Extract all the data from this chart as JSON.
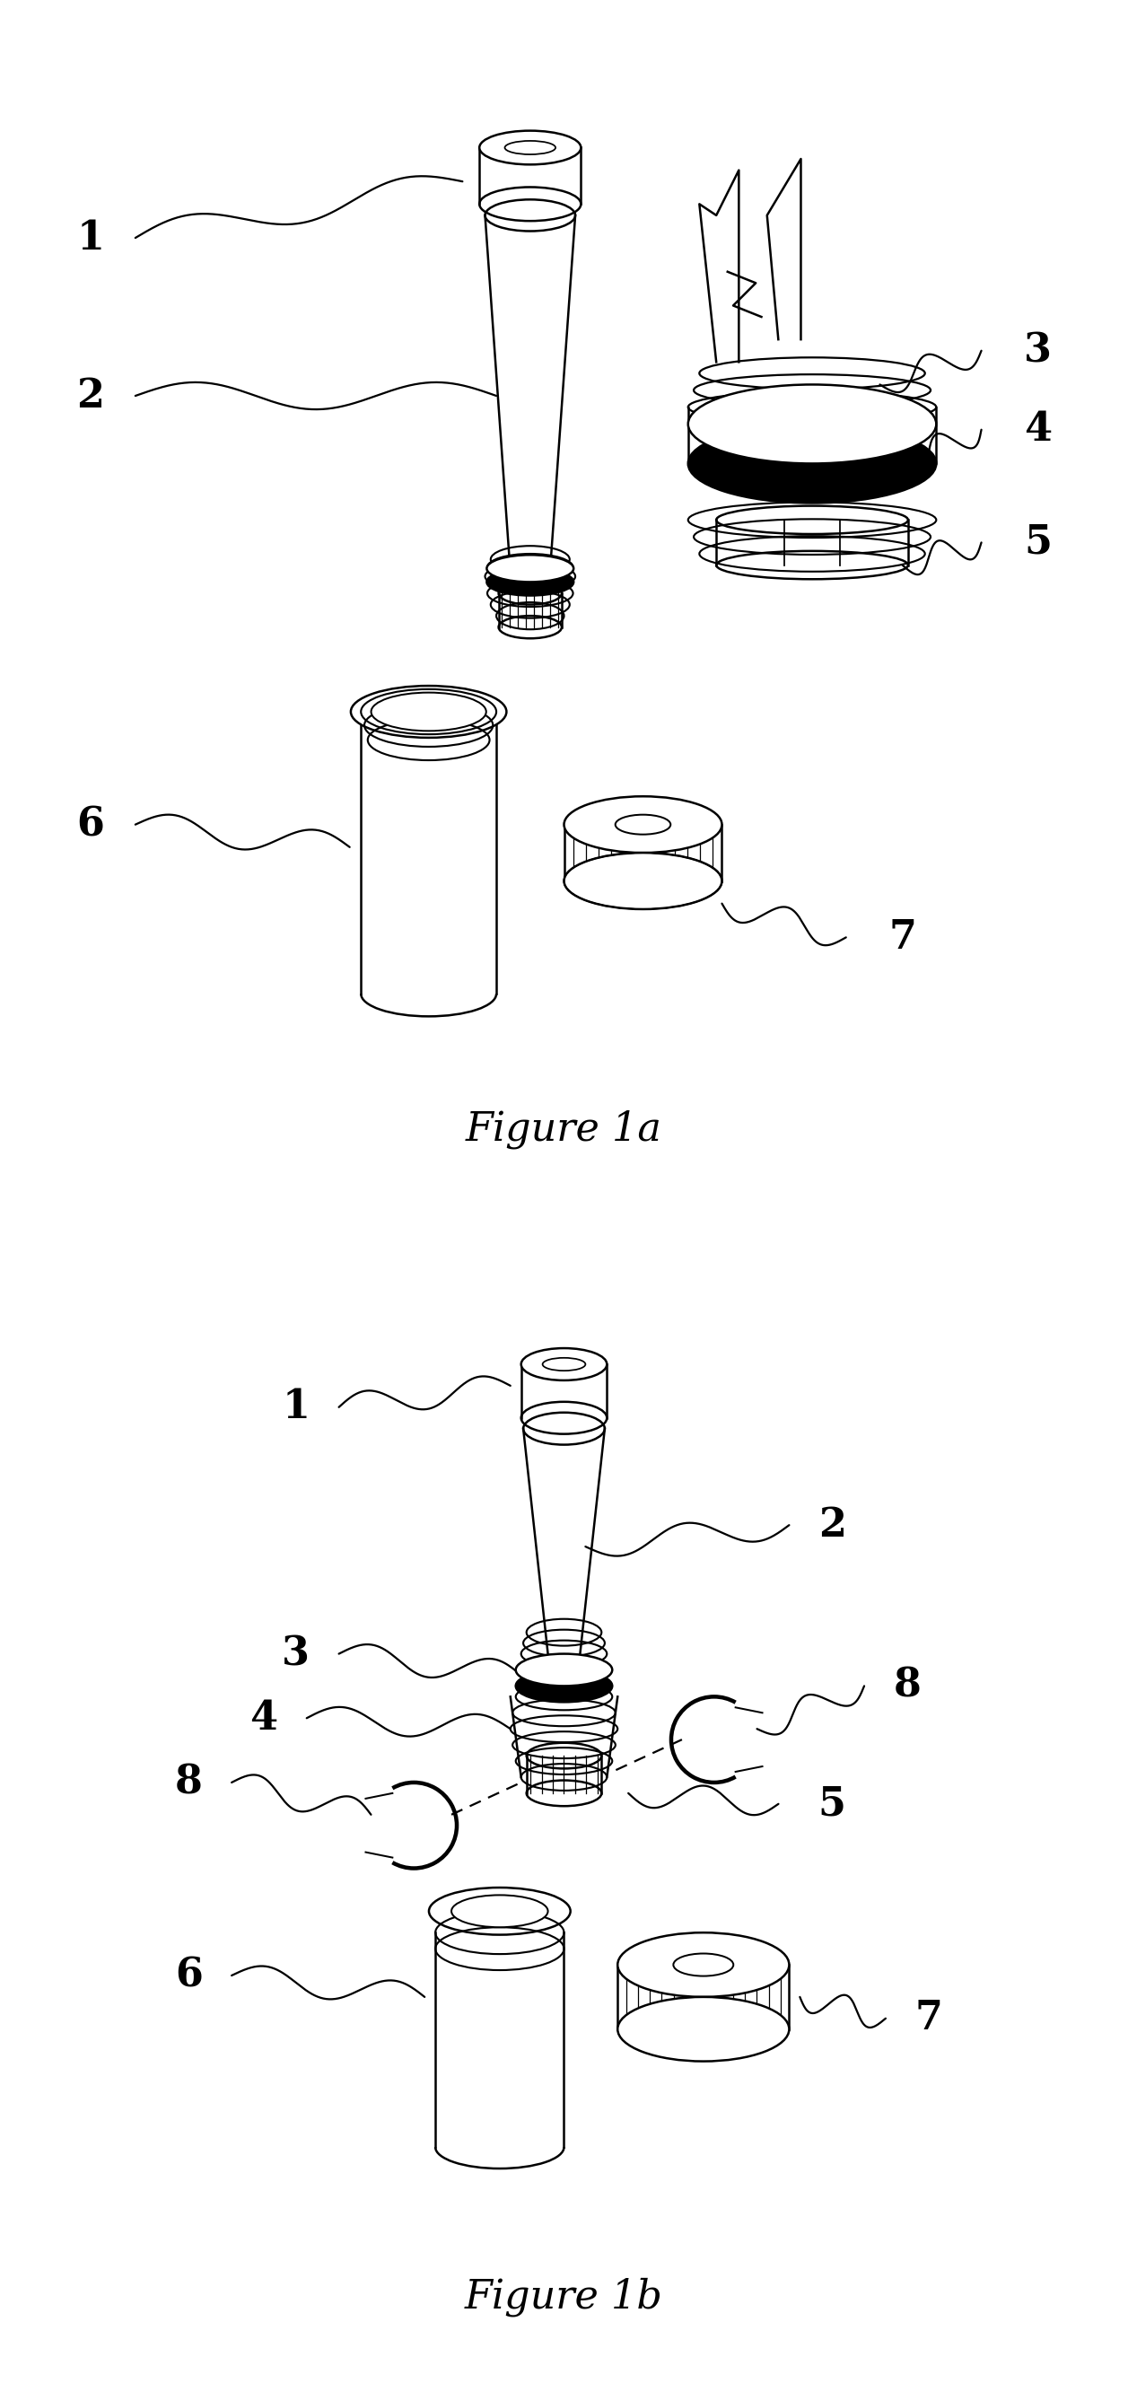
{
  "fig_width": 12.57,
  "fig_height": 26.55,
  "background_color": "#ffffff",
  "figure1a_title": "Figure 1a",
  "figure1b_title": "Figure 1b",
  "title_fontsize": 32,
  "label_fontsize": 32,
  "label_color": "#000000"
}
